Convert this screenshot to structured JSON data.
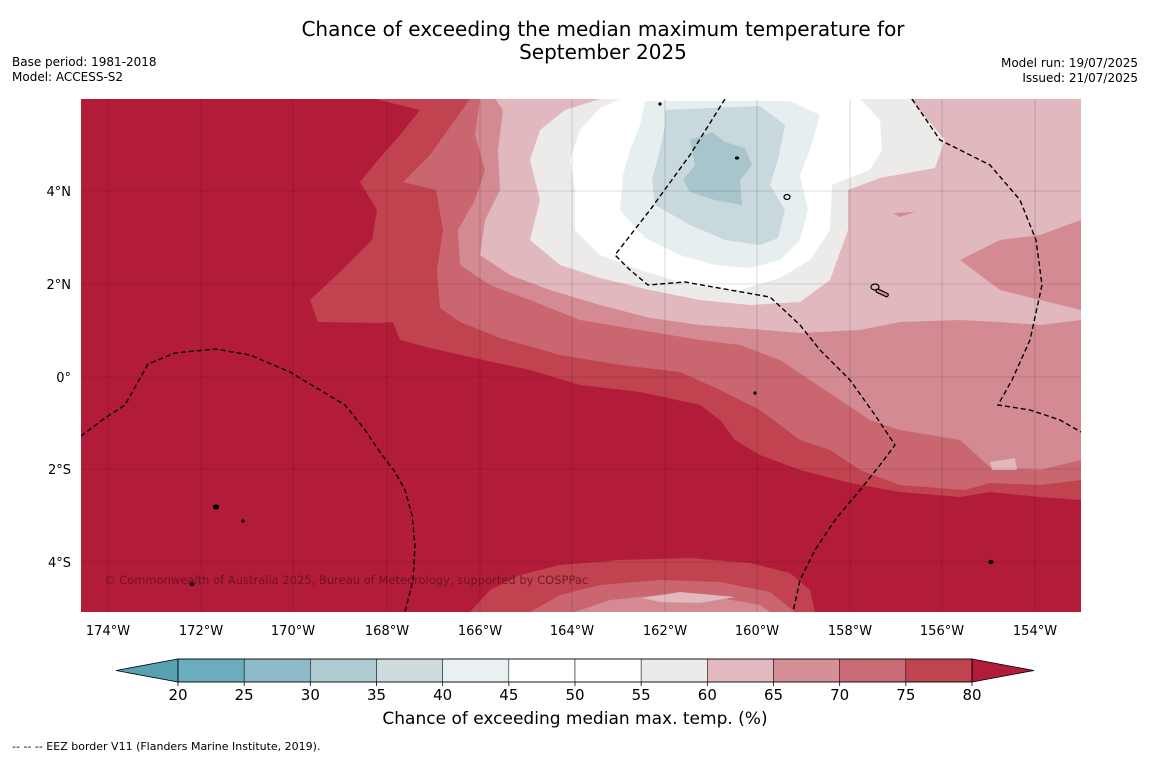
{
  "title": {
    "line1": "Chance of exceeding the median maximum temperature for",
    "line2": "September 2025"
  },
  "meta": {
    "base_period": "Base period: 1981-2018",
    "model": "Model: ACCESS-S2",
    "model_run": "Model run: 19/07/2025",
    "issued": "Issued: 21/07/2025"
  },
  "map": {
    "lat_labels": [
      "4°N",
      "2°N",
      "0°",
      "2°S",
      "4°S"
    ],
    "lon_labels": [
      "174°W",
      "172°W",
      "170°W",
      "168°W",
      "166°W",
      "164°W",
      "162°W",
      "160°W",
      "158°W",
      "156°W",
      "154°W"
    ],
    "copyright": "© Commonwealth of Australia 2025, Bureau of Meteorology, supported by COSPPac",
    "colors": {
      "c80": "#b31c39",
      "c75": "#c0434f",
      "c70": "#c96670",
      "c65": "#d48a92",
      "c60": "#e0b8bd",
      "c55": "#ecebe9",
      "c50": "#ffffff",
      "c45": "#ffffff",
      "c40": "#e7eef0",
      "c35": "#c8d8dd",
      "c30": "#a7c5cb",
      "c25": "#87b8c2",
      "c20": "#63a9b9"
    }
  },
  "colorbar": {
    "ticks": [
      "20",
      "25",
      "30",
      "35",
      "40",
      "45",
      "50",
      "55",
      "60",
      "65",
      "70",
      "75",
      "80"
    ],
    "colors": [
      "#6aadbf",
      "#8cbac6",
      "#afcbd1",
      "#cddbde",
      "#e9f0f2",
      "#ffffff",
      "#ffffff",
      "#ecebe9",
      "#e2b9be",
      "#d68e97",
      "#ca6a74",
      "#c0444f"
    ],
    "low_color": "#56a2b3",
    "high_color": "#b31c39",
    "label": "Chance of exceeding median max. temp. (%)"
  },
  "footnote": "--  --  -- EEZ border V11 (Flanders Marine Institute, 2019)."
}
